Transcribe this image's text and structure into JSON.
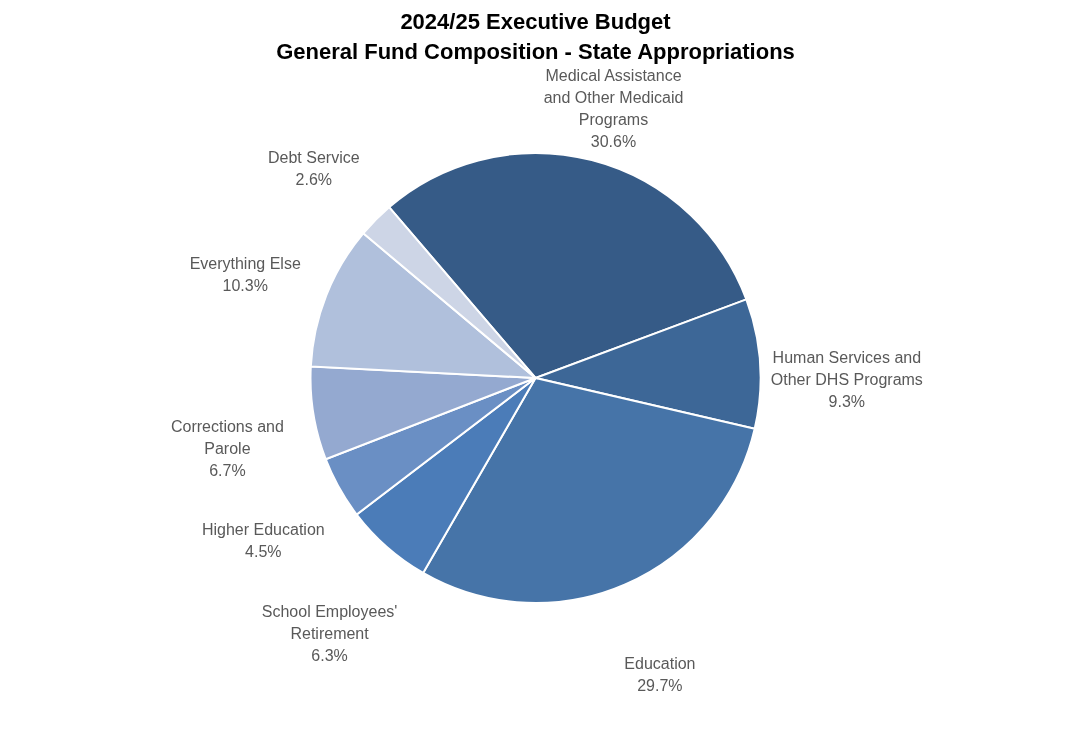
{
  "chart_data": {
    "type": "pie",
    "title": [
      "2024/25 Executive Budget",
      "General Fund Composition - State Appropriations"
    ],
    "categories": [
      "Medical Assistance and Other Medicaid Programs",
      "Human Services and Other DHS Programs",
      "Education",
      "School Employees' Retirement",
      "Higher Education",
      "Corrections and Parole",
      "Everything Else",
      "Debt Service"
    ],
    "values": [
      30.6,
      9.3,
      29.7,
      6.3,
      4.5,
      6.7,
      10.3,
      2.6
    ],
    "colors": [
      "#365b87",
      "#3d6797",
      "#4674a8",
      "#4b7cb8",
      "#6a8fc4",
      "#94a9d0",
      "#b0c0dc",
      "#cdd5e6"
    ],
    "value_labels": [
      "30.6%",
      "9.3%",
      "29.7%",
      "6.3%",
      "4.5%",
      "6.7%",
      "10.3%",
      "2.6%"
    ],
    "legend": false
  }
}
